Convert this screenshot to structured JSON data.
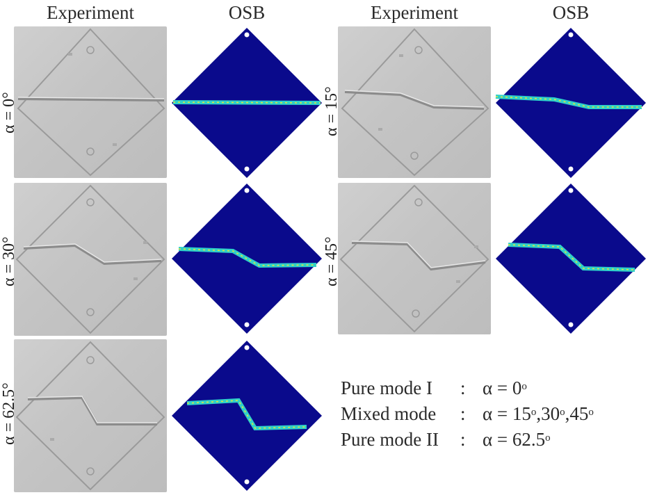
{
  "headers": {
    "experiment_left": "Experiment",
    "osb_left": "OSB",
    "experiment_right": "Experiment",
    "osb_right": "OSB"
  },
  "panels": [
    {
      "alpha": "α = 0°",
      "crack": "mode I straight"
    },
    {
      "alpha": "α = 15°",
      "crack": "mixed"
    },
    {
      "alpha": "α = 30°",
      "crack": "mixed"
    },
    {
      "alpha": "α = 45°",
      "crack": "mixed"
    },
    {
      "alpha": "α = 62.5°",
      "crack": "mode II"
    }
  ],
  "legend": {
    "row1_mode": "Pure mode I",
    "row1_colon": ":",
    "row1_value": "α = 0",
    "row2_mode": "Mixed mode",
    "row2_colon": ":",
    "row2_value": "α = 15",
    "row2_value_b": ",30",
    "row2_value_c": ",45",
    "row3_mode": "Pure mode II",
    "row3_colon": ":",
    "row3_value": "α = 62.5",
    "degree_symbol": "o"
  },
  "colors": {
    "sim_background": "#0a0a8c",
    "crack_outer": "#2fd0c8",
    "crack_inner": "#e6e63a",
    "photo_background": "#c6c6c6"
  }
}
